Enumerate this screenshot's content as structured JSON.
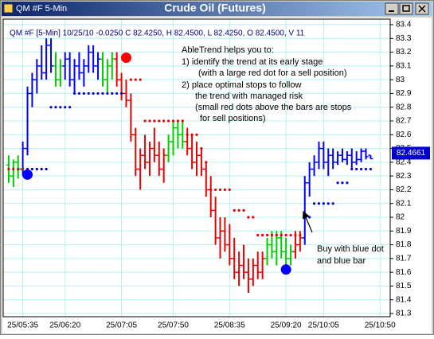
{
  "window_name": "QM #F 5-Min",
  "chart_data": {
    "type": "ohlc",
    "title": "Crude Oil (Futures)",
    "info_line": "QM #F [5-Min] 10/25/10 -0.0250 C 82.4250, H 82.4500, L 82.4250, O 82.4500, V 11",
    "annotation_lines": [
      "AbleTrend helps you to:",
      "1)    identify the trend at its early stage",
      "(with a large red dot for a sell position)",
      "2)   place optimal stops to follow",
      "the trend with managed risk",
      "(small red dots above the bars are stops",
      "for sell positions)"
    ],
    "callout_lines": [
      "Buy with blue dot",
      "and blue bar"
    ],
    "last_price": 82.4661,
    "grid": true,
    "grid_color": "#b4f0f0",
    "xlim": [
      -1,
      81
    ],
    "xticks": [
      {
        "value": 3,
        "label": "25/05:35"
      },
      {
        "value": 12,
        "label": "25/06:20"
      },
      {
        "value": 24,
        "label": "25/07:05"
      },
      {
        "value": 35,
        "label": "25/07:50"
      },
      {
        "value": 47,
        "label": "25/08:35"
      },
      {
        "value": 59,
        "label": "25/09:20"
      },
      {
        "value": 67,
        "label": "25/10:05"
      },
      {
        "value": 79,
        "label": "25/10:50"
      }
    ],
    "ylim": [
      81.3,
      83.4
    ],
    "yticks": [
      81.3,
      81.4,
      81.5,
      81.6,
      81.7,
      81.8,
      81.9,
      82,
      82.1,
      82.2,
      82.3,
      82.4,
      82.5,
      82.6,
      82.7,
      82.8,
      82.9,
      83,
      83.1,
      83.2,
      83.3,
      83.4
    ],
    "open": [
      82.38,
      82.3,
      82.4,
      82.35,
      82.5,
      82.9,
      83,
      83.1,
      83.05,
      83.25,
      83.1,
      83,
      83.1,
      83.15,
      83,
      83.1,
      83.05,
      83.1,
      83.2,
      83.1,
      83.15,
      83,
      83.1,
      83.15,
      83,
      82.9,
      82.85,
      82.6,
      82.35,
      82.45,
      82.4,
      82.5,
      82.45,
      82.35,
      82.45,
      82.55,
      82.65,
      82.6,
      82.55,
      82.5,
      82.4,
      82.45,
      82.35,
      82.2,
      82.05,
      81.85,
      81.9,
      81.8,
      81.7,
      81.6,
      81.65,
      81.6,
      81.55,
      81.65,
      81.6,
      81.7,
      81.8,
      81.75,
      81.85,
      81.75,
      81.7,
      81.75,
      81.8,
      81.85,
      82.25,
      82.35,
      82.4,
      82.5,
      82.4,
      82.45,
      82.4,
      82.45,
      82.42,
      82.45,
      82.4,
      82.42,
      82.48,
      82.45
    ],
    "high": [
      82.45,
      82.42,
      82.45,
      82.55,
      82.95,
      83.05,
      83.15,
      83.25,
      83.3,
      83.3,
      83.2,
      83.15,
      83.2,
      83.2,
      83.15,
      83.2,
      83.15,
      83.25,
      83.25,
      83.2,
      83.2,
      83.15,
      83.2,
      83.2,
      83.05,
      83,
      82.9,
      82.65,
      82.5,
      82.6,
      82.55,
      82.65,
      82.55,
      82.5,
      82.6,
      82.7,
      82.7,
      82.7,
      82.65,
      82.6,
      82.55,
      82.5,
      82.4,
      82.3,
      82.15,
      82,
      82,
      81.95,
      81.85,
      81.75,
      81.8,
      81.7,
      81.7,
      81.75,
      81.75,
      81.85,
      81.9,
      81.9,
      81.9,
      81.85,
      81.8,
      81.9,
      81.9,
      82.3,
      82.4,
      82.45,
      82.55,
      82.55,
      82.5,
      82.5,
      82.48,
      82.5,
      82.48,
      82.5,
      82.48,
      82.5,
      82.5,
      82.45
    ],
    "low": [
      82.25,
      82.22,
      82.28,
      82.3,
      82.45,
      82.8,
      82.9,
      83,
      83,
      83.05,
      82.95,
      82.95,
      83,
      82.95,
      82.9,
      83,
      82.95,
      83.05,
      83.05,
      83,
      82.95,
      82.9,
      83,
      82.95,
      82.85,
      82.8,
      82.55,
      82.3,
      82.2,
      82.35,
      82.3,
      82.4,
      82.3,
      82.25,
      82.4,
      82.45,
      82.5,
      82.5,
      82.45,
      82.35,
      82.3,
      82.3,
      82.15,
      82,
      81.8,
      81.7,
      81.75,
      81.65,
      81.55,
      81.5,
      81.55,
      81.45,
      81.5,
      81.55,
      81.55,
      81.65,
      81.7,
      81.65,
      81.7,
      81.65,
      81.65,
      81.7,
      81.75,
      81.8,
      82.15,
      82.3,
      82.35,
      82.35,
      82.3,
      82.35,
      82.38,
      82.4,
      82.38,
      82.35,
      82.38,
      82.4,
      82.42,
      82.425
    ],
    "close": [
      82.3,
      82.4,
      82.35,
      82.5,
      82.9,
      83,
      83.1,
      83.05,
      83.25,
      83.1,
      83,
      83.1,
      83.15,
      83,
      83.1,
      83.05,
      83.1,
      83.2,
      83.1,
      83.15,
      83,
      83.1,
      83.15,
      83,
      82.9,
      82.85,
      82.6,
      82.35,
      82.45,
      82.4,
      82.5,
      82.45,
      82.35,
      82.45,
      82.55,
      82.65,
      82.6,
      82.55,
      82.5,
      82.4,
      82.45,
      82.35,
      82.2,
      82.05,
      81.85,
      81.9,
      81.8,
      81.7,
      81.6,
      81.65,
      81.6,
      81.55,
      81.65,
      81.6,
      81.7,
      81.8,
      81.75,
      81.85,
      81.75,
      81.7,
      81.75,
      81.8,
      81.85,
      82.25,
      82.35,
      82.4,
      82.5,
      82.4,
      82.45,
      82.4,
      82.45,
      82.42,
      82.45,
      82.4,
      82.42,
      82.48,
      82.44,
      82.425
    ],
    "bar_colors": [
      "#0c0",
      "#0c0",
      "#0c0",
      "#00f",
      "#00f",
      "#00f",
      "#00f",
      "#00f",
      "#00f",
      "#00f",
      "#0c0",
      "#0c0",
      "#00f",
      "#00f",
      "#00f",
      "#00f",
      "#00f",
      "#00f",
      "#00f",
      "#00f",
      "#0c0",
      "#0c0",
      "#0c0",
      "#e00",
      "#e00",
      "#e00",
      "#e00",
      "#e00",
      "#e00",
      "#e00",
      "#e00",
      "#e00",
      "#e00",
      "#e00",
      "#0c0",
      "#0c0",
      "#0c0",
      "#0c0",
      "#e00",
      "#e00",
      "#e00",
      "#e00",
      "#e00",
      "#e00",
      "#e00",
      "#e00",
      "#e00",
      "#e00",
      "#e00",
      "#e00",
      "#e00",
      "#e00",
      "#e00",
      "#e00",
      "#e00",
      "#0c0",
      "#0c0",
      "#0c0",
      "#0c0",
      "#0c0",
      "#0c0",
      "#e00",
      "#e00",
      "#00f",
      "#00f",
      "#00f",
      "#00f",
      "#00f",
      "#00f",
      "#00f",
      "#00f",
      "#00f",
      "#00f",
      "#00f",
      "#00f",
      "#00f",
      "#00f",
      "#00f"
    ],
    "stops": [
      {
        "color": "#e00000",
        "values": [
          82.35,
          82.35,
          82.35,
          82.35,
          null,
          null,
          null,
          null,
          null,
          null,
          null,
          null,
          null,
          null,
          null,
          null,
          null,
          null,
          null,
          null,
          null,
          null,
          null,
          null,
          null,
          null,
          83,
          83,
          83,
          82.7,
          82.7,
          82.7,
          82.7,
          82.7,
          82.7,
          82.7,
          82.7,
          82.7,
          82.6,
          82.6,
          82.6,
          82.5,
          82.4,
          82.2,
          82.2,
          82.2,
          82.2,
          82.2,
          82.05,
          82.05,
          82.05,
          82,
          82,
          81.87,
          81.87,
          81.87,
          81.87,
          81.87,
          81.87,
          81.87,
          81.87,
          81.87,
          81.87,
          null,
          null,
          null,
          null,
          null,
          null,
          null,
          null,
          null,
          null,
          null,
          null,
          null,
          null,
          null
        ]
      },
      {
        "color": "#0000cc",
        "values": [
          null,
          null,
          null,
          null,
          82.35,
          82.35,
          82.35,
          82.35,
          82.35,
          82.8,
          82.8,
          82.8,
          82.8,
          82.8,
          82.9,
          82.9,
          82.9,
          82.9,
          82.9,
          82.9,
          82.9,
          82.9,
          82.9,
          82.9,
          82.9,
          null,
          null,
          null,
          null,
          null,
          null,
          null,
          null,
          null,
          null,
          null,
          null,
          null,
          null,
          null,
          null,
          null,
          null,
          null,
          null,
          null,
          null,
          null,
          null,
          null,
          null,
          null,
          null,
          null,
          null,
          null,
          null,
          null,
          null,
          null,
          null,
          null,
          null,
          82,
          82,
          82.1,
          82.1,
          82.1,
          82.1,
          82.1,
          82.25,
          82.25,
          82.25,
          82.35,
          82.35,
          82.35,
          82.35,
          82.35
        ]
      }
    ],
    "signals": [
      {
        "x": 4,
        "y": 82.31,
        "color": "#0000ff"
      },
      {
        "x": 25,
        "y": 83.16,
        "color": "#ff0000"
      },
      {
        "x": 59,
        "y": 81.62,
        "color": "#0000ff"
      }
    ]
  }
}
